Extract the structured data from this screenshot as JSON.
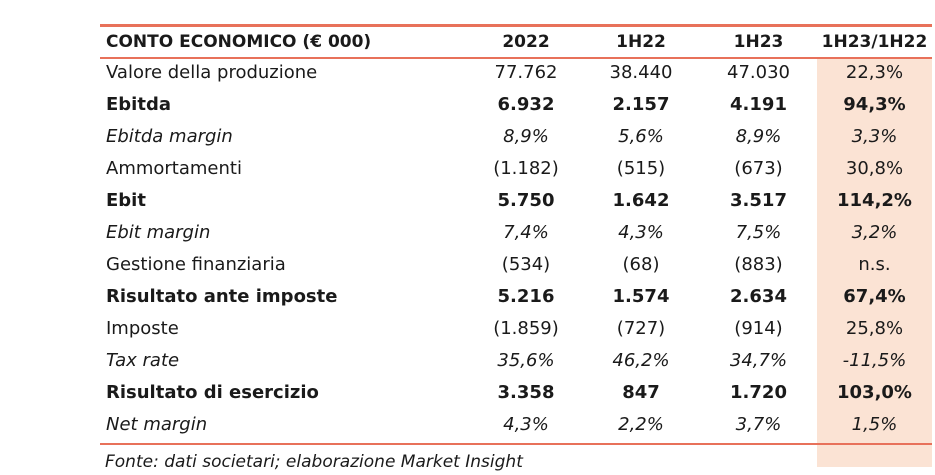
{
  "table": {
    "headers": [
      "CONTO ECONOMICO (€ 000)",
      "2022",
      "1H22",
      "1H23",
      "1H23/1H22"
    ],
    "rows": [
      {
        "style": "normal",
        "cells": [
          "Valore della produzione",
          "77.762",
          "38.440",
          "47.030",
          "22,3%"
        ]
      },
      {
        "style": "bold",
        "cells": [
          "Ebitda",
          "6.932",
          "2.157",
          "4.191",
          "94,3%"
        ]
      },
      {
        "style": "italic",
        "cells": [
          "Ebitda margin",
          "8,9%",
          "5,6%",
          "8,9%",
          "3,3%"
        ]
      },
      {
        "style": "normal",
        "cells": [
          "Ammortamenti",
          "(1.182)",
          "(515)",
          "(673)",
          "30,8%"
        ]
      },
      {
        "style": "bold",
        "cells": [
          "Ebit",
          "5.750",
          "1.642",
          "3.517",
          "114,2%"
        ]
      },
      {
        "style": "italic",
        "cells": [
          "Ebit margin",
          "7,4%",
          "4,3%",
          "7,5%",
          "3,2%"
        ]
      },
      {
        "style": "normal",
        "cells": [
          "Gestione finanziaria",
          "(534)",
          "(68)",
          "(883)",
          "n.s."
        ]
      },
      {
        "style": "bold",
        "cells": [
          "Risultato ante imposte",
          "5.216",
          "1.574",
          "2.634",
          "67,4%"
        ]
      },
      {
        "style": "normal",
        "cells": [
          "Imposte",
          "(1.859)",
          "(727)",
          "(914)",
          "25,8%"
        ]
      },
      {
        "style": "italic",
        "cells": [
          "Tax rate",
          "35,6%",
          "46,2%",
          "34,7%",
          "-11,5%"
        ]
      },
      {
        "style": "bold",
        "cells": [
          "Risultato di esercizio",
          "3.358",
          "847",
          "1.720",
          "103,0%"
        ]
      },
      {
        "style": "italic",
        "cells": [
          "Net margin",
          "4,3%",
          "2,2%",
          "3,7%",
          "1,5%"
        ]
      }
    ]
  },
  "source": "Fonte: dati societari; elaborazione Market Insight",
  "colors": {
    "rule": "#e8715a",
    "highlight_column": "#fbe3d4",
    "text": "#1a1a1a"
  }
}
